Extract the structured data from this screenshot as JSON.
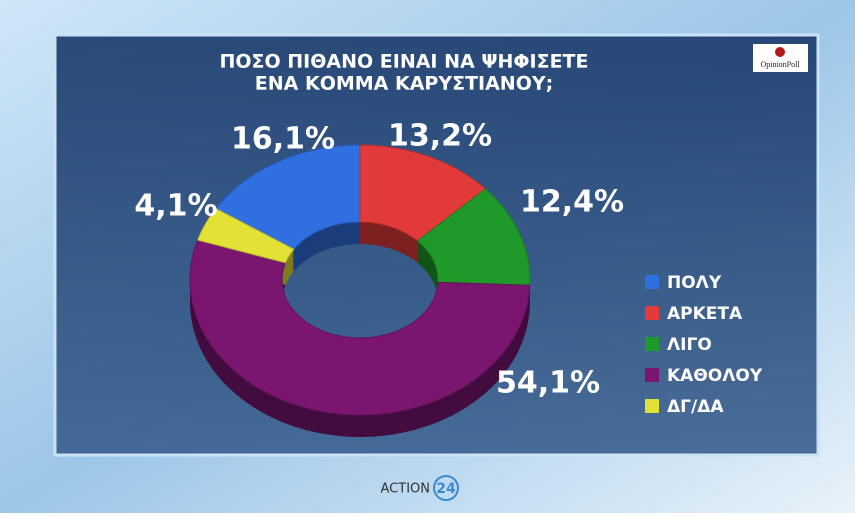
{
  "chart_data": {
    "type": "donut",
    "title": [
      "ΠΟΣΟ ΠΙΘΑΝΟ ΕΙΝΑΙ ΝΑ ΨΗΦΙΣΕΤΕ",
      "ΕΝΑ ΚΟΜΜΑ ΚΑΡΥΣΤΙΑΝΟΥ;"
    ],
    "categories": [
      "ΠΟΛΥ",
      "ΑΡΚΕΤΑ",
      "ΛΙΓΟ",
      "ΚΑΘΟΛΟΥ",
      "ΔΓ/ΔΑ"
    ],
    "values": [
      16.1,
      13.2,
      12.4,
      54.1,
      4.1
    ],
    "value_labels": [
      "16,1%",
      "13,2%",
      "12,4%",
      "54,1%",
      "4,1%"
    ],
    "colors": [
      "#2f6fe0",
      "#e23a3a",
      "#1f9a2a",
      "#7a1670",
      "#e2e236"
    ],
    "legend": "right"
  },
  "logo": "OpinionPoll",
  "channel": "ACTION",
  "channel_number": "24"
}
